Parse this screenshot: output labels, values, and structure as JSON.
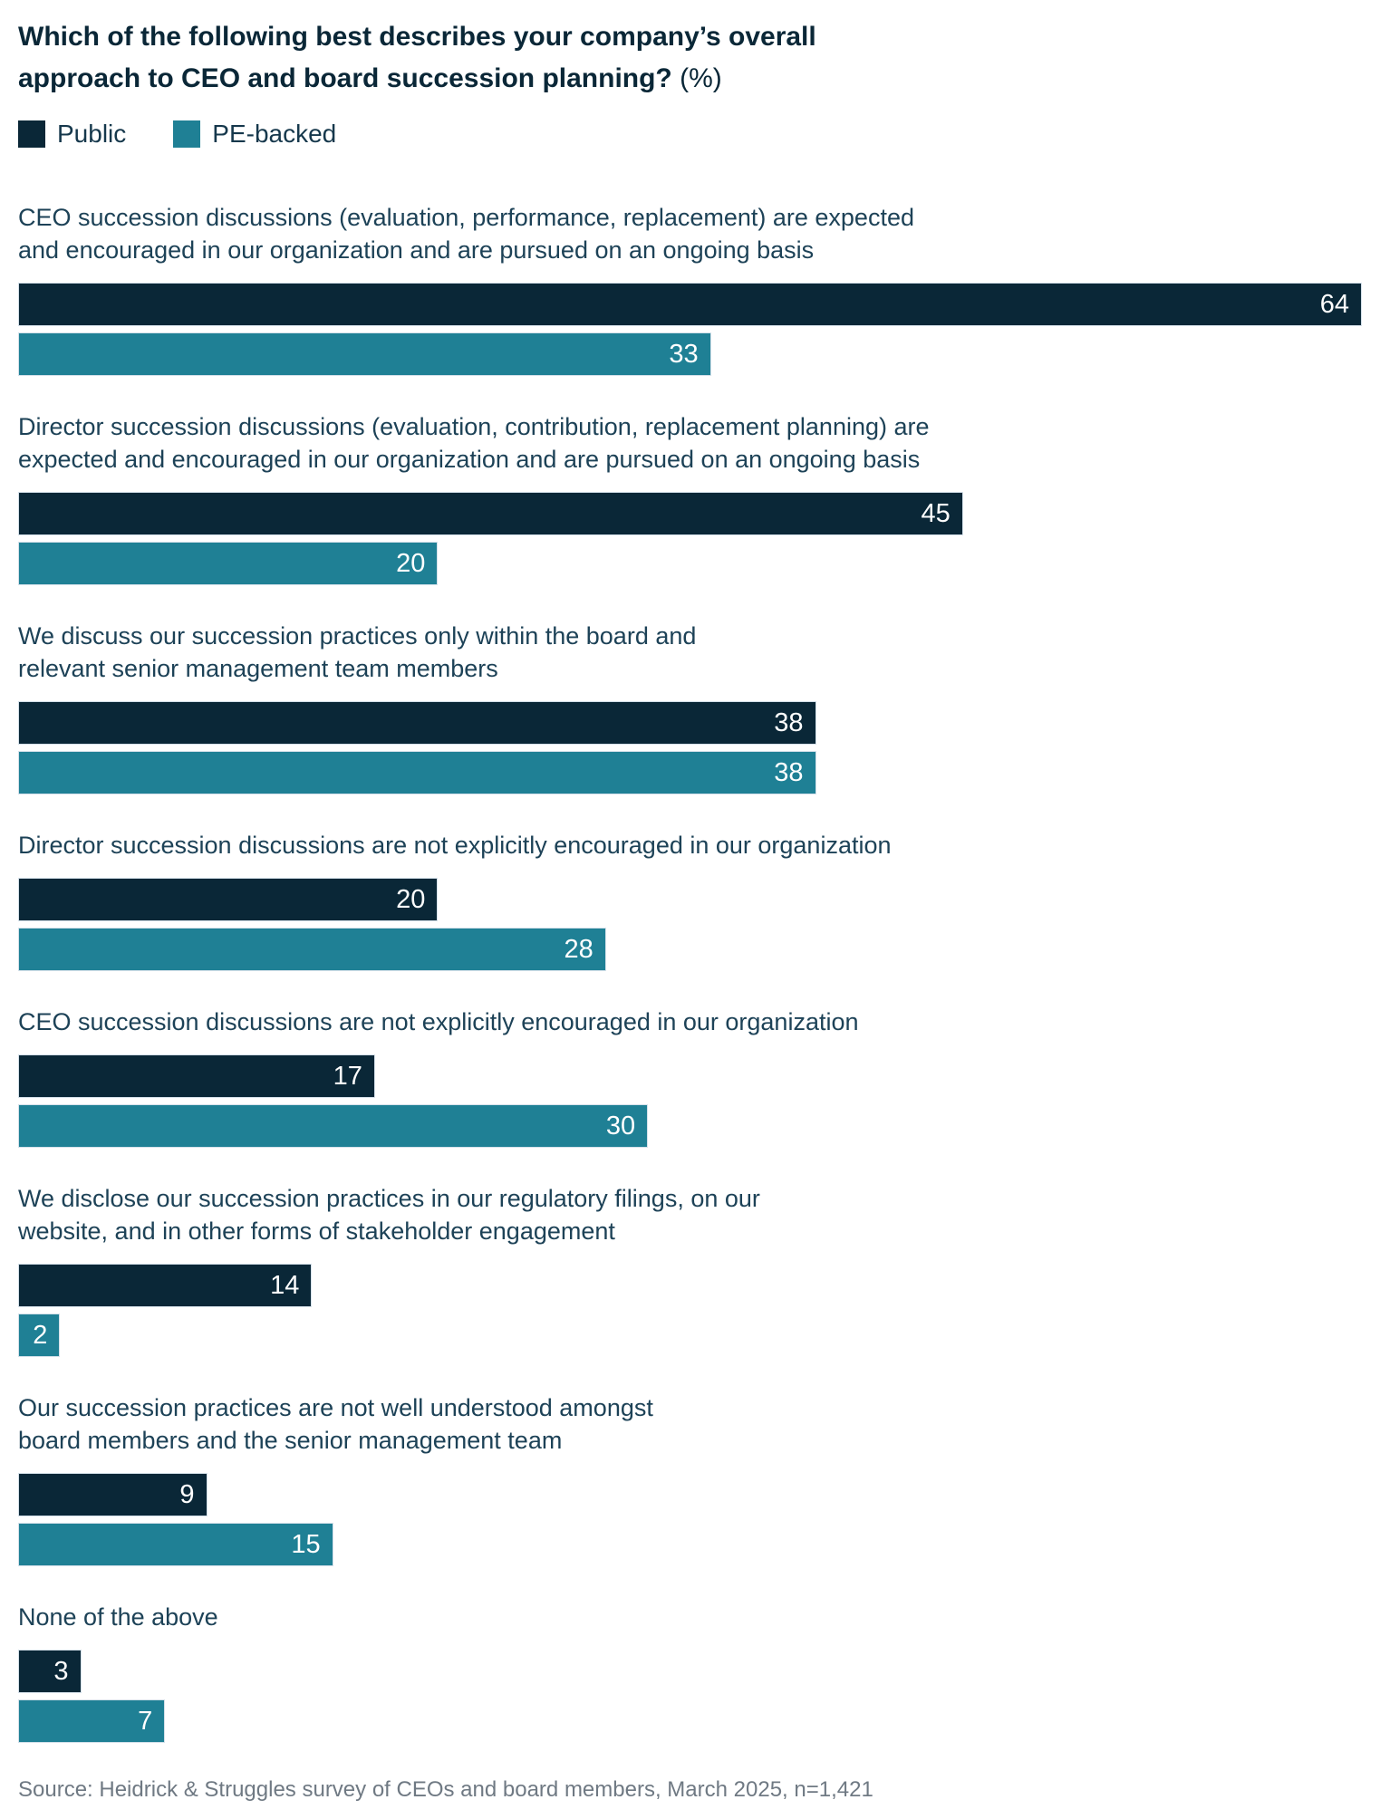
{
  "title": {
    "question": "Which of the following best describes your company’s overall\napproach to CEO and board succession planning?",
    "unit": " (%)"
  },
  "legend": [
    {
      "label": "Public",
      "color": "#0a2737"
    },
    {
      "label": "PE-backed",
      "color": "#1f8095"
    }
  ],
  "chart_data": {
    "type": "bar",
    "orientation": "horizontal",
    "title": "Which of the following best describes your company’s overall approach to CEO and board succession planning? (%)",
    "xlabel": "",
    "ylabel": "",
    "xlim": [
      0,
      64
    ],
    "max_value": 64,
    "grid": false,
    "legend_position": "top-left",
    "value_labels": "inside-end, white",
    "categories": [
      "CEO succession discussions (evaluation, performance, replacement) are expected\nand encouraged in our organization and are pursued on an ongoing basis",
      "Director succession discussions (evaluation, contribution, replacement planning) are\nexpected and encouraged in our organization and are pursued on an ongoing basis",
      "We discuss our succession practices only within the board and\nrelevant senior management team members",
      "Director succession discussions are not explicitly encouraged in our organization",
      "CEO succession discussions are not explicitly encouraged in our organization",
      "We disclose our succession practices in our regulatory filings, on our\nwebsite, and in other forms of stakeholder engagement",
      "Our succession practices are not well understood amongst\nboard members and the senior management team",
      "None of the above"
    ],
    "series": [
      {
        "name": "Public",
        "color": "#0a2737",
        "values": [
          64,
          45,
          38,
          20,
          17,
          14,
          9,
          3
        ]
      },
      {
        "name": "PE-backed",
        "color": "#1f8095",
        "values": [
          33,
          20,
          38,
          28,
          30,
          2,
          15,
          7
        ]
      }
    ]
  },
  "source": "Source: Heidrick & Struggles survey of CEOs and board members, March 2025, n=1,421"
}
